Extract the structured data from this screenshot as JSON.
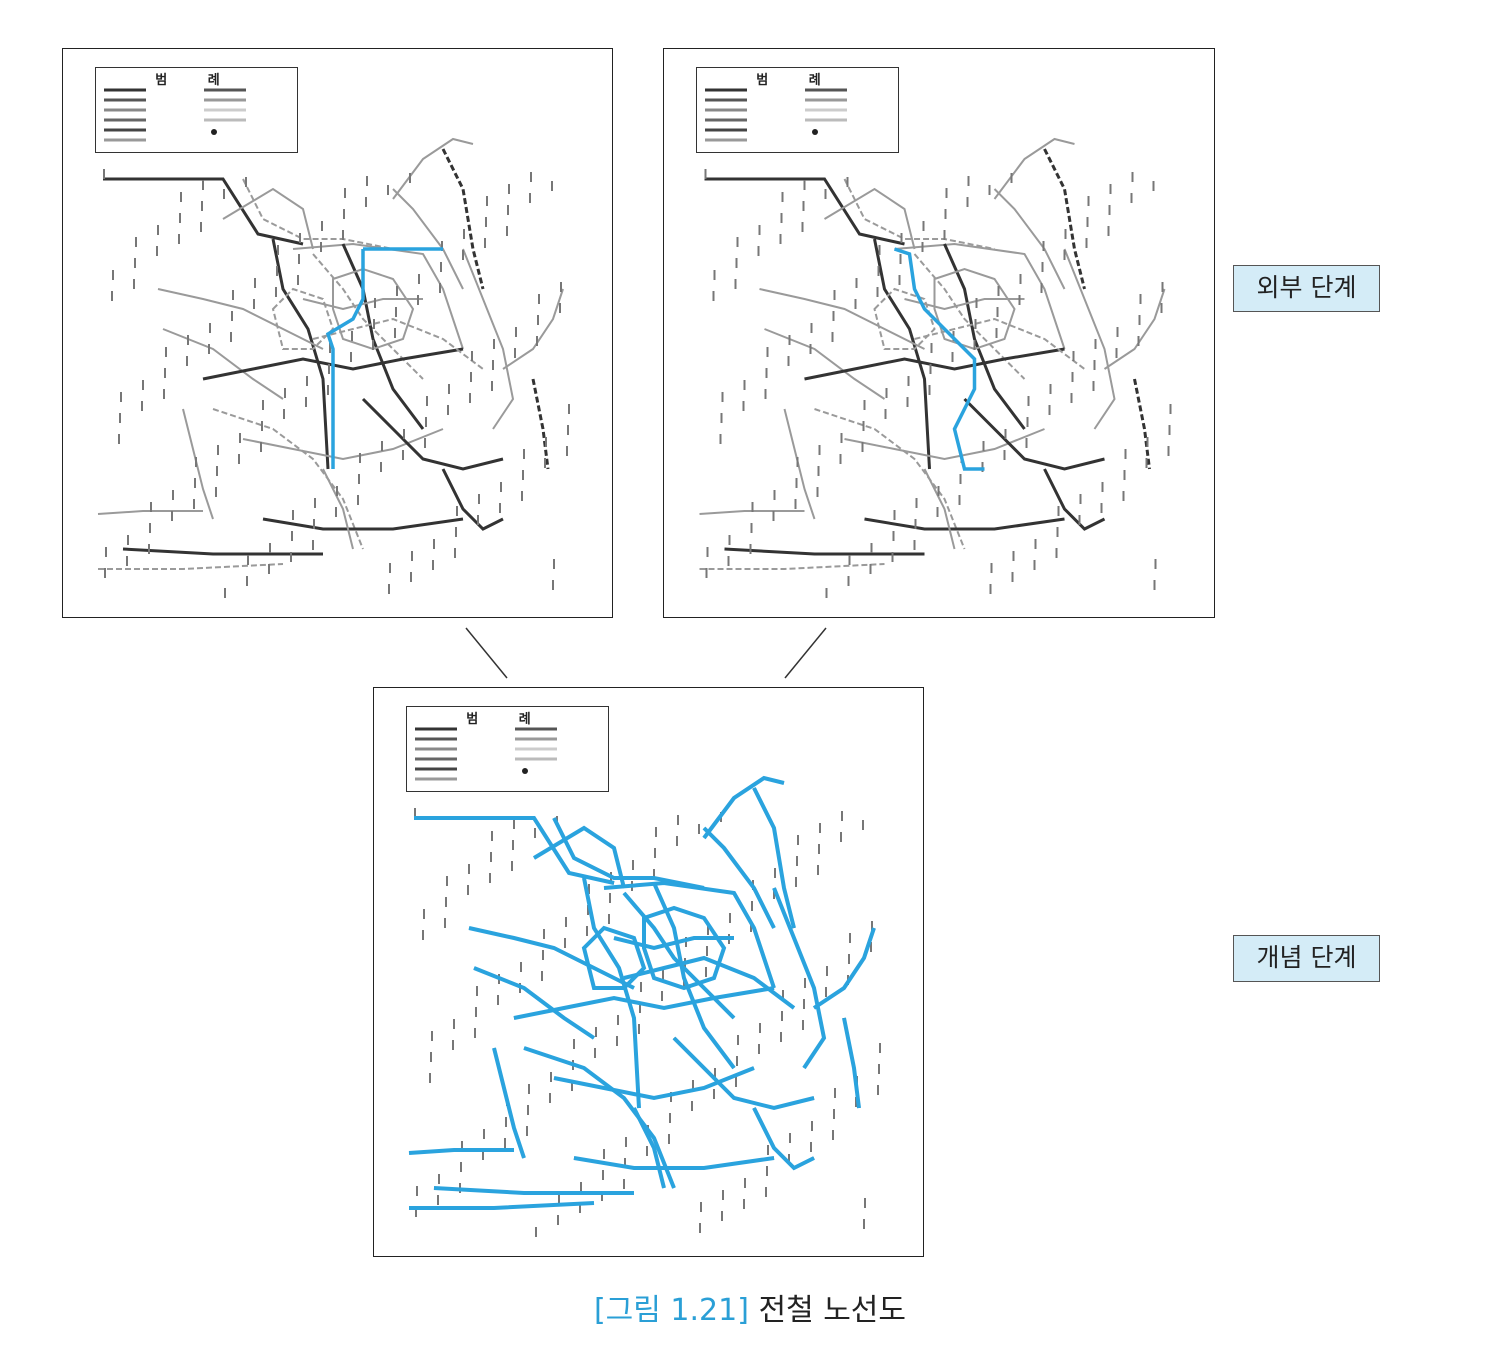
{
  "maps": [
    {
      "id": "left",
      "legend_title": "범 례",
      "highlight": "route-a"
    },
    {
      "id": "right",
      "legend_title": "범 례",
      "highlight": "route-b"
    },
    {
      "id": "bottom",
      "legend_title": "범 례",
      "highlight": "all"
    }
  ],
  "stage_labels": {
    "outer": "외부 단계",
    "concept": "개념 단계"
  },
  "caption": {
    "figure_number": "[그림 1.21]",
    "title": "전철 노선도"
  },
  "colors": {
    "highlight": "#2aa3de",
    "line_dark": "#333333",
    "line_gray": "#9a9a9a",
    "label_bg": "#d4ecf7",
    "caption_accent": "#2a9fd6"
  }
}
